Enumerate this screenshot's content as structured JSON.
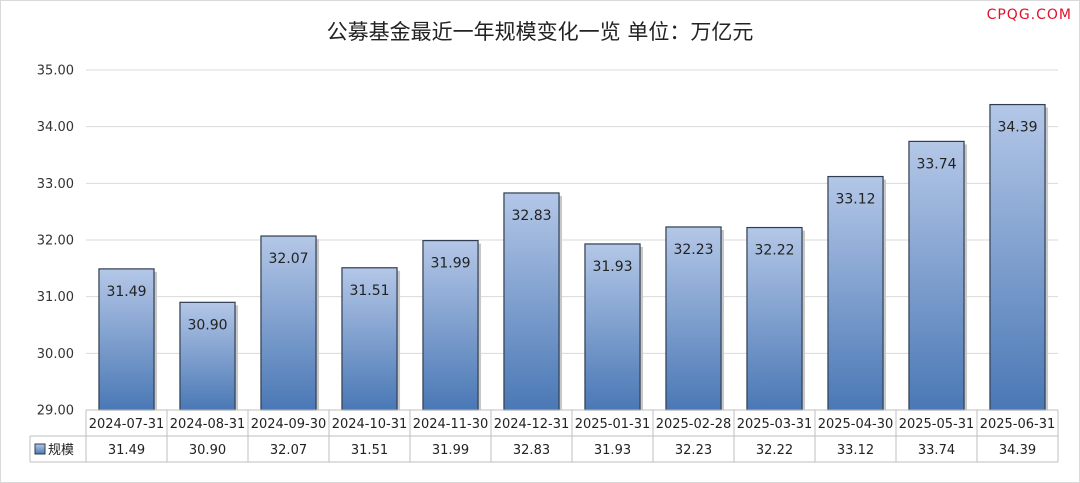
{
  "chart_data": {
    "type": "bar",
    "title": "公募基金最近一年规模变化一览 单位：万亿元",
    "watermark": "CPQG.COM",
    "categories": [
      "2024-07-31",
      "2024-08-31",
      "2024-09-30",
      "2024-10-31",
      "2024-11-30",
      "2024-12-31",
      "2025-01-31",
      "2025-02-28",
      "2025-03-31",
      "2025-04-30",
      "2025-05-31",
      "2025-06-31"
    ],
    "series": [
      {
        "name": "规模",
        "values": [
          31.49,
          30.9,
          32.07,
          31.51,
          31.99,
          32.83,
          31.93,
          32.23,
          32.22,
          33.12,
          33.74,
          34.39
        ],
        "labels": [
          "31.49",
          "30.90",
          "32.07",
          "31.51",
          "31.99",
          "32.83",
          "31.93",
          "32.23",
          "32.22",
          "33.12",
          "33.74",
          "34.39"
        ]
      }
    ],
    "ylim": [
      29,
      35
    ],
    "yticks": [
      "29.00",
      "30.00",
      "31.00",
      "32.00",
      "33.00",
      "34.00",
      "35.00"
    ],
    "grid": true,
    "data_table": true,
    "bar_color_top": "#b4c7e7",
    "bar_color_bottom": "#4a78b5",
    "bar_edge": "#2f3d50",
    "watermark_color": "#e0112a"
  }
}
